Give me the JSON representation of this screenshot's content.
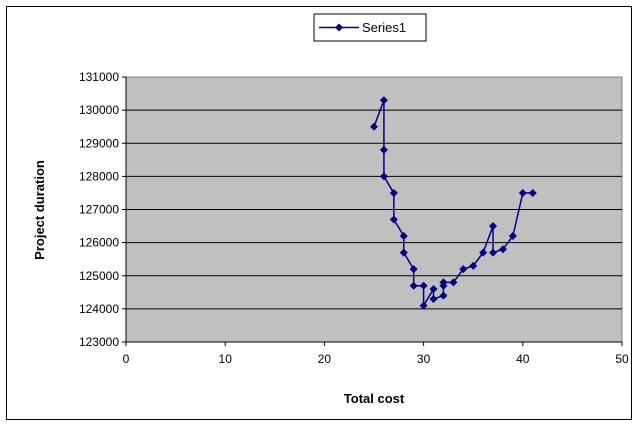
{
  "chart_data": {
    "type": "scatter",
    "title": "",
    "xlabel": "Total cost",
    "ylabel": "Project duration",
    "xlim": [
      0,
      50
    ],
    "ylim": [
      123000,
      131000
    ],
    "x_ticks": [
      0,
      10,
      20,
      30,
      40,
      50
    ],
    "y_ticks": [
      123000,
      124000,
      125000,
      126000,
      127000,
      128000,
      129000,
      130000,
      131000
    ],
    "grid": "horizontal",
    "legend_position": "top",
    "plot_background": "#c0c0c0",
    "series": [
      {
        "name": "Series1",
        "color": "#000080",
        "marker": "diamond",
        "points": [
          [
            25,
            129500
          ],
          [
            26,
            130300
          ],
          [
            26,
            128800
          ],
          [
            26,
            128000
          ],
          [
            27,
            127500
          ],
          [
            27,
            126700
          ],
          [
            28,
            126200
          ],
          [
            28,
            125700
          ],
          [
            29,
            125200
          ],
          [
            29,
            124700
          ],
          [
            30,
            124700
          ],
          [
            30,
            124100
          ],
          [
            31,
            124600
          ],
          [
            31,
            124300
          ],
          [
            32,
            124400
          ],
          [
            32,
            124700
          ],
          [
            32,
            124800
          ],
          [
            33,
            124800
          ],
          [
            34,
            125200
          ],
          [
            35,
            125300
          ],
          [
            36,
            125700
          ],
          [
            37,
            126500
          ],
          [
            37,
            125700
          ],
          [
            38,
            125800
          ],
          [
            39,
            126200
          ],
          [
            40,
            127500
          ],
          [
            41,
            127500
          ]
        ]
      }
    ]
  }
}
